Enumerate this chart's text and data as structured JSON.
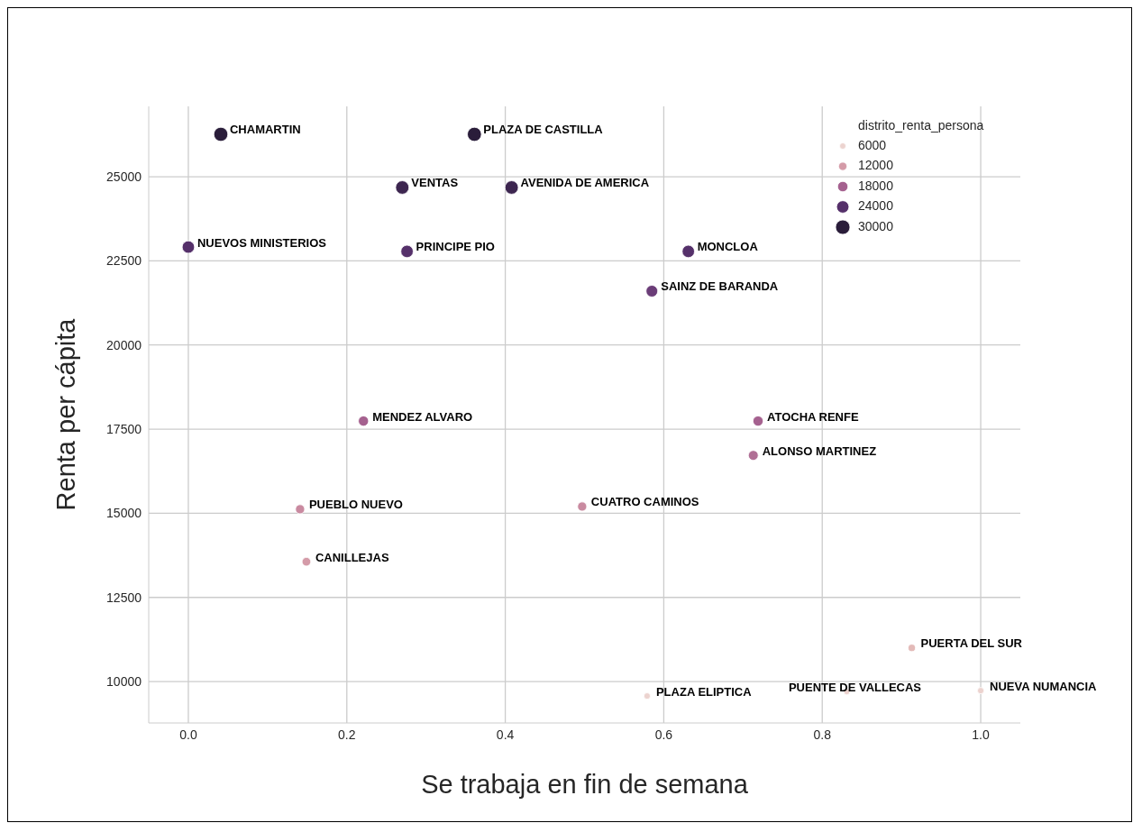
{
  "chart_data": {
    "type": "bubble",
    "xlabel": "Se trabaja en fin de semana",
    "ylabel": "Renta per cápita",
    "legend_title": "distrito_renta_persona",
    "grid": true,
    "marker": "circle",
    "xlim": [
      -0.05,
      1.05
    ],
    "xticks": [
      {
        "value": 0,
        "label": "0.0"
      },
      0.2,
      0.4,
      0.6,
      0.8,
      {
        "value": 1,
        "label": "1.0"
      }
    ],
    "ylim": [
      8770,
      27090
    ],
    "yticks": [
      10000,
      12500,
      15000,
      17500,
      20000,
      22500,
      25000
    ],
    "x": [
      0.041,
      0.361,
      0.27,
      0.408,
      0.0,
      0.276,
      0.631,
      0.585,
      0.221,
      0.719,
      0.713,
      0.141,
      0.497,
      0.149,
      0.913,
      0.579,
      0.831,
      1.0
    ],
    "values": [
      26260,
      26260,
      24680,
      24680,
      22910,
      22780,
      22780,
      21600,
      17740,
      17740,
      16720,
      15120,
      15200,
      13560,
      11000,
      9570,
      9700,
      9730
    ],
    "sizes": [
      29000,
      29000,
      27000,
      27000,
      24000,
      24000,
      24000,
      22000,
      17500,
      17500,
      16500,
      14500,
      14500,
      13000,
      9000,
      6500,
      6000,
      6500
    ],
    "size_legend": [
      6000,
      12000,
      18000,
      24000,
      30000
    ],
    "colors": [
      "#2a1d3a",
      "#2a1d3a",
      "#3d2650",
      "#3d2650",
      "#55306a",
      "#55306a",
      "#55306a",
      "#6b3d78",
      "#a5618f",
      "#a5618f",
      "#b06f95",
      "#c98aa0",
      "#c98aa0",
      "#d49ba8",
      "#e3bab8",
      "#ecd3cf",
      "#ecd3cf",
      "#ecd3cf"
    ],
    "annotations": [
      {
        "text": "CHAMARTIN",
        "x": 0.041,
        "y": 26260
      },
      {
        "text": "PLAZA DE CASTILLA",
        "x": 0.361,
        "y": 26260
      },
      {
        "text": "VENTAS",
        "x": 0.27,
        "y": 24680
      },
      {
        "text": "AVENIDA DE AMERICA",
        "x": 0.408,
        "y": 24680
      },
      {
        "text": "NUEVOS MINISTERIOS",
        "x": 0.0,
        "y": 22910
      },
      {
        "text": "PRINCIPE PIO",
        "x": 0.276,
        "y": 22780
      },
      {
        "text": "MONCLOA",
        "x": 0.631,
        "y": 22780
      },
      {
        "text": "SAINZ DE BARANDA",
        "x": 0.585,
        "y": 21600
      },
      {
        "text": "MENDEZ ALVARO",
        "x": 0.221,
        "y": 17740
      },
      {
        "text": "ATOCHA RENFE",
        "x": 0.719,
        "y": 17740
      },
      {
        "text": "ALONSO MARTINEZ",
        "x": 0.713,
        "y": 16720
      },
      {
        "text": "PUEBLO NUEVO",
        "x": 0.141,
        "y": 15120
      },
      {
        "text": "CUATRO CAMINOS",
        "x": 0.497,
        "y": 15200
      },
      {
        "text": "CANILLEJAS",
        "x": 0.149,
        "y": 13560
      },
      {
        "text": "PUERTA DEL SUR",
        "x": 0.913,
        "y": 11000
      },
      {
        "text": "PLAZA ELIPTICA",
        "x": 0.579,
        "y": 9570
      },
      {
        "text": "PUENTE DE VALLECAS",
        "x": 0.831,
        "y": 9700
      },
      {
        "text": "NUEVA NUMANCIA",
        "x": 1.0,
        "y": 9730
      }
    ]
  }
}
